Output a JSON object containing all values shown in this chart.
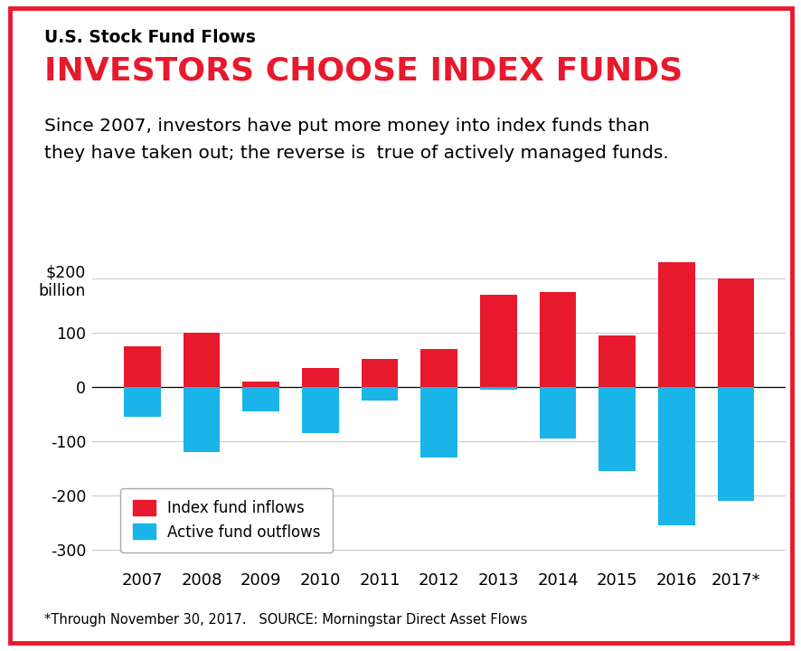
{
  "title_small": "U.S. Stock Fund Flows",
  "title_main": "INVESTORS CHOOSE INDEX FUNDS",
  "subtitle_line1": "Since 2007, investors have put more money into index funds than",
  "subtitle_line2": "they have taken out; the reverse is  true of actively managed funds.",
  "footnote": "*Through November 30, 2017.   SOURCE: Morningstar Direct Asset Flows",
  "years": [
    "2007",
    "2008",
    "2009",
    "2010",
    "2011",
    "2012",
    "2013",
    "2014",
    "2015",
    "2016",
    "2017*"
  ],
  "index_inflows": [
    75,
    100,
    10,
    35,
    52,
    70,
    170,
    175,
    95,
    230,
    200
  ],
  "active_outflows": [
    -55,
    -120,
    -45,
    -85,
    -25,
    -130,
    -5,
    -95,
    -155,
    -255,
    -210
  ],
  "index_color": "#E8192C",
  "active_color": "#1AB4E8",
  "background_color": "#FFFFFF",
  "border_color": "#E8192C",
  "ylim": [
    -330,
    270
  ],
  "yticks": [
    -300,
    -200,
    -100,
    0,
    100,
    200
  ],
  "legend_labels": [
    "Index fund inflows",
    "Active fund outflows"
  ],
  "bar_width": 0.62,
  "grid_color": "#CCCCCC"
}
